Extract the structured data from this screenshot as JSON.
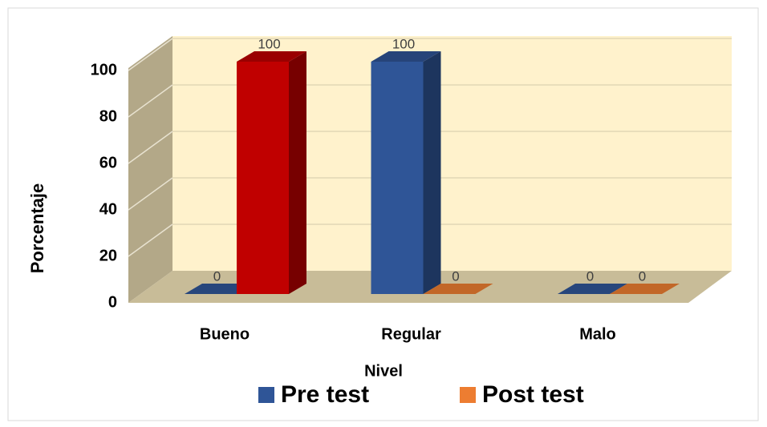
{
  "chart_data": {
    "type": "bar3d",
    "y_label": "Porcentaje",
    "x_label": "Nivel",
    "categories": [
      "Bueno",
      "Regular",
      "Malo"
    ],
    "series": [
      {
        "name": "Pre test",
        "color": "#2f5597",
        "values": [
          0,
          100,
          0
        ]
      },
      {
        "name": "Post test",
        "color": "#ed7d31",
        "point_colors": [
          "#c00000",
          "#ed7d31",
          "#ed7d31"
        ],
        "values": [
          100,
          0,
          0
        ]
      }
    ],
    "ylim": [
      0,
      100
    ],
    "yticks": [
      0,
      20,
      40,
      60,
      80,
      100
    ],
    "grid": true,
    "legend": "bottom"
  }
}
